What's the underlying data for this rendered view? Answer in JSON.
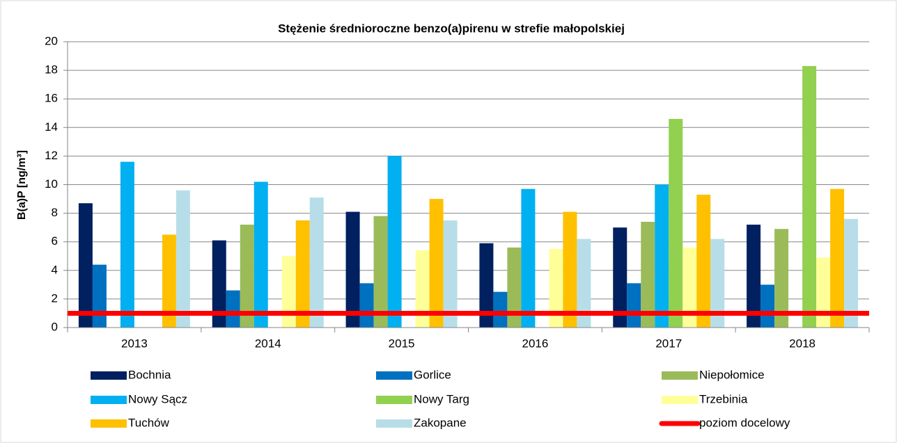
{
  "chart_data": {
    "type": "bar",
    "title": "Stężenie średnioroczne benzo(a)pirenu w strefie małopolskiej",
    "y_label": "B(a)P [ng/m³]",
    "categories": [
      "2013",
      "2014",
      "2015",
      "2016",
      "2017",
      "2018"
    ],
    "series": [
      {
        "name": "Bochnia",
        "color": "#002060",
        "values": [
          8.7,
          6.1,
          8.1,
          5.9,
          7.0,
          7.2
        ]
      },
      {
        "name": "Gorlice",
        "color": "#0070c0",
        "values": [
          4.4,
          2.6,
          3.1,
          2.5,
          3.1,
          3.0
        ]
      },
      {
        "name": "Niepołomice",
        "color": "#9bbb59",
        "values": [
          null,
          7.2,
          7.8,
          5.6,
          7.4,
          6.9
        ]
      },
      {
        "name": "Nowy Sącz",
        "color": "#00b0f0",
        "values": [
          11.6,
          10.2,
          12.0,
          9.7,
          10.0,
          null
        ]
      },
      {
        "name": "Nowy Targ",
        "color": "#92d050",
        "values": [
          null,
          null,
          null,
          null,
          14.6,
          18.3
        ]
      },
      {
        "name": "Trzebinia",
        "color": "#ffff99",
        "values": [
          null,
          5.0,
          5.4,
          5.5,
          5.6,
          4.9
        ]
      },
      {
        "name": "Tuchów",
        "color": "#ffc000",
        "values": [
          6.5,
          7.5,
          9.0,
          8.1,
          9.3,
          9.7
        ]
      },
      {
        "name": "Zakopane",
        "color": "#b7dee8",
        "values": [
          9.6,
          9.1,
          7.5,
          6.2,
          6.2,
          7.6
        ]
      }
    ],
    "reference_line": {
      "name": "poziom docelowy",
      "color": "#ff0000",
      "value": 1
    },
    "ylim": [
      0,
      20
    ],
    "yticks": [
      0,
      2,
      4,
      6,
      8,
      10,
      12,
      14,
      16,
      18,
      20
    ],
    "grid": true
  }
}
